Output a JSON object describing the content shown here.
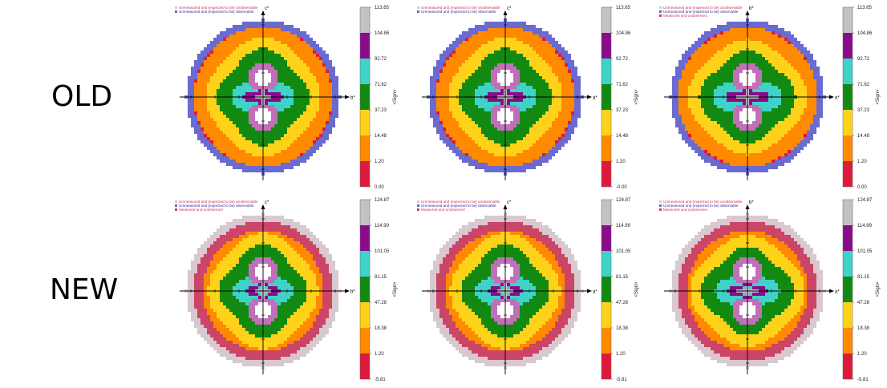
{
  "rows": [
    {
      "label": "OLD"
    },
    {
      "label": "NEW"
    }
  ],
  "colors": {
    "unmeasured_unobservable": "#d8c8cf",
    "unmeasured_observable": "#6a6ad0",
    "measured_unobserved": "#cc4466",
    "bands": [
      "#dd1a3c",
      "#ff8a00",
      "#ffd21a",
      "#128a12",
      "#3fd2c8",
      "#8a0c8a",
      "#c2c2c2"
    ]
  },
  "chart_data": [
    {
      "type": "heatmap",
      "row": 0,
      "col": 0,
      "xlabel": "b*",
      "ylabel": "c*",
      "colorbar_ticks": [
        "113.65",
        "104.86",
        "92.72",
        "71.62",
        "37.23",
        "14.48",
        "1.20",
        "0.00"
      ],
      "colorbar_label": "<Sign>",
      "legend": [
        {
          "key": "unmeasured_unobservable",
          "label": "Unmeasured and (expected to be) unobservable"
        },
        {
          "key": "unmeasured_observable",
          "label": "Unmeasured and (expected to be) observable"
        }
      ]
    },
    {
      "type": "heatmap",
      "row": 0,
      "col": 1,
      "xlabel": "a*",
      "ylabel": "c*",
      "colorbar_ticks": [
        "113.65",
        "104.86",
        "92.72",
        "71.62",
        "37.23",
        "14.48",
        "1.20",
        "-0.00"
      ],
      "colorbar_label": "<Sign>",
      "legend": [
        {
          "key": "unmeasured_unobservable",
          "label": "Unmeasured and (expected to be) unobservable"
        },
        {
          "key": "unmeasured_observable",
          "label": "Unmeasured and (expected to be) observable"
        }
      ]
    },
    {
      "type": "heatmap",
      "row": 0,
      "col": 2,
      "xlabel": "a*",
      "ylabel": "b*",
      "colorbar_ticks": [
        "113.65",
        "104.86",
        "92.72",
        "71.62",
        "37.23",
        "14.48",
        "1.20",
        "0.00"
      ],
      "colorbar_label": "<Sign>",
      "legend": [
        {
          "key": "unmeasured_unobservable",
          "label": "Unmeasured and (expected to be) unobservable"
        },
        {
          "key": "unmeasured_observable",
          "label": "Unmeasured and (expected to be) observable"
        },
        {
          "key": "measured_unobserved",
          "label": "Measured and unobserved"
        }
      ]
    },
    {
      "type": "heatmap",
      "row": 1,
      "col": 0,
      "xlabel": "b*",
      "ylabel": "c*",
      "colorbar_ticks": [
        "124.87",
        "114.99",
        "101.05",
        "81.15",
        "47.28",
        "18.38",
        "1.20",
        "-5.81"
      ],
      "colorbar_label": "<Sign>",
      "legend": [
        {
          "key": "unmeasured_unobservable",
          "label": "Unmeasured and (expected to be) unobservable"
        },
        {
          "key": "unmeasured_observable",
          "label": "Unmeasured and (expected to be) observable"
        },
        {
          "key": "measured_unobserved",
          "label": "Measured and unobserved"
        }
      ]
    },
    {
      "type": "heatmap",
      "row": 1,
      "col": 1,
      "xlabel": "a*",
      "ylabel": "c*",
      "colorbar_ticks": [
        "124.87",
        "114.99",
        "101.05",
        "81.15",
        "47.28",
        "18.38",
        "1.20",
        "-5.81"
      ],
      "colorbar_label": "<Sign>",
      "legend": [
        {
          "key": "unmeasured_unobservable",
          "label": "Unmeasured and (expected to be) unobservable"
        },
        {
          "key": "unmeasured_observable",
          "label": "Unmeasured and (expected to be) observable"
        },
        {
          "key": "measured_unobserved",
          "label": "Measured and unobserved"
        }
      ]
    },
    {
      "type": "heatmap",
      "row": 1,
      "col": 2,
      "xlabel": "a*",
      "ylabel": "b*",
      "colorbar_ticks": [
        "124.87",
        "114.99",
        "101.05",
        "81.15",
        "47.28",
        "18.38",
        "1.20",
        "-5.81"
      ],
      "colorbar_label": "<Sign>",
      "legend": [
        {
          "key": "unmeasured_unobservable",
          "label": "Unmeasured and (expected to be) unobservable"
        },
        {
          "key": "unmeasured_observable",
          "label": "Unmeasured and (expected to be) observable"
        },
        {
          "key": "measured_unobserved",
          "label": "Measured and unobserved"
        }
      ]
    }
  ]
}
